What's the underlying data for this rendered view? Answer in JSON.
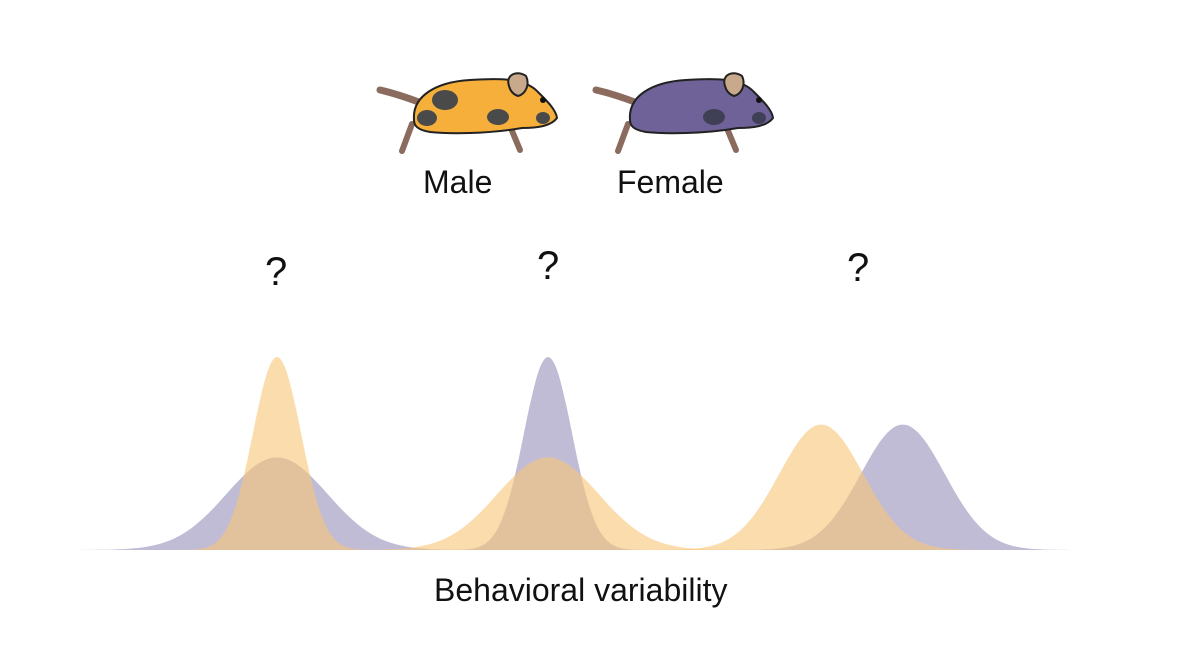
{
  "legend": {
    "male": {
      "label": "Male",
      "color": "#F5AF3A",
      "icon": "mouse-icon"
    },
    "female": {
      "label": "Female",
      "color": "#6E6299",
      "icon": "mouse-icon"
    }
  },
  "curve_colors": {
    "male": "#F7C77A",
    "female": "#9A93BB"
  },
  "question_marks": [
    "?",
    "?",
    "?"
  ],
  "panels": [
    {
      "male": {
        "mean": 0,
        "sd": 1,
        "peak": 1.0
      },
      "female": {
        "mean": 0,
        "sd": 2.1,
        "peak": 0.48
      }
    },
    {
      "male": {
        "mean": 0,
        "sd": 2.1,
        "peak": 0.48
      },
      "female": {
        "mean": 0,
        "sd": 1,
        "peak": 1.0
      }
    },
    {
      "male": {
        "mean": -1.7,
        "sd": 1.75,
        "peak": 0.65
      },
      "female": {
        "mean": 1.7,
        "sd": 1.75,
        "peak": 0.65
      }
    }
  ],
  "xlabel": "Behavioral variability"
}
